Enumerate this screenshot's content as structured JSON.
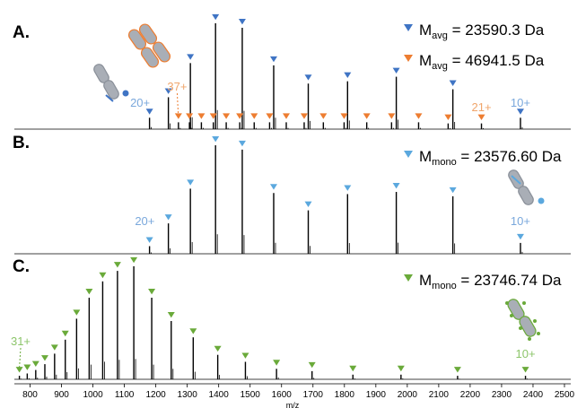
{
  "colors": {
    "blue": "#3f74c4",
    "lightblue": "#5ba8de",
    "orange": "#ed7d31",
    "green": "#6aaa3a",
    "peak": "#000000",
    "label_blue": "#7aa8dc",
    "label_orange": "#f0a56b",
    "label_green": "#8cc56a",
    "cartoon_gray": "#a9aeb6"
  },
  "chart_data": [
    {
      "type": "line",
      "panel": "A.",
      "legend_position": "top-right",
      "legend": [
        {
          "marker": "blue",
          "text": "M",
          "sub": "avg",
          "value": " = 23590.3 Da"
        },
        {
          "marker": "orange",
          "text": "M",
          "sub": "avg",
          "value": " = 46941.5 Da"
        }
      ],
      "series": [
        {
          "marker": "blue",
          "peaks": [
            {
              "mz": 1180,
              "rel": 0.1
            },
            {
              "mz": 1240,
              "rel": 0.28
            },
            {
              "mz": 1310,
              "rel": 0.58
            },
            {
              "mz": 1390,
              "rel": 0.93
            },
            {
              "mz": 1475,
              "rel": 0.89
            },
            {
              "mz": 1575,
              "rel": 0.56
            },
            {
              "mz": 1685,
              "rel": 0.4
            },
            {
              "mz": 1810,
              "rel": 0.42
            },
            {
              "mz": 1965,
              "rel": 0.46
            },
            {
              "mz": 2145,
              "rel": 0.35
            },
            {
              "mz": 2360,
              "rel": 0.1
            }
          ]
        },
        {
          "marker": "orange",
          "peaks": [
            {
              "mz": 1272,
              "rel": 0.06
            },
            {
              "mz": 1307,
              "rel": 0.06
            },
            {
              "mz": 1345,
              "rel": 0.06
            },
            {
              "mz": 1383,
              "rel": 0.06
            },
            {
              "mz": 1424,
              "rel": 0.06
            },
            {
              "mz": 1467,
              "rel": 0.06
            },
            {
              "mz": 1513,
              "rel": 0.06
            },
            {
              "mz": 1562,
              "rel": 0.06
            },
            {
              "mz": 1615,
              "rel": 0.06
            },
            {
              "mz": 1672,
              "rel": 0.06
            },
            {
              "mz": 1733,
              "rel": 0.06
            },
            {
              "mz": 1799,
              "rel": 0.06
            },
            {
              "mz": 1871,
              "rel": 0.06
            },
            {
              "mz": 1950,
              "rel": 0.06
            },
            {
              "mz": 2036,
              "rel": 0.06
            },
            {
              "mz": 2130,
              "rel": 0.05
            },
            {
              "mz": 2236,
              "rel": 0.05
            }
          ]
        }
      ],
      "annotations": [
        {
          "text": "20+",
          "mz": 1150,
          "color": "label_blue"
        },
        {
          "text": "37+",
          "mz": 1268,
          "color": "label_orange"
        },
        {
          "text": "21+",
          "mz": 2236,
          "color": "label_orange"
        },
        {
          "text": "10+",
          "mz": 2360,
          "color": "label_blue"
        }
      ]
    },
    {
      "type": "line",
      "panel": "B.",
      "legend_position": "top-right",
      "legend": [
        {
          "marker": "lightblue",
          "text": "M",
          "sub": "mono",
          "value": " = 23576.60 Da"
        }
      ],
      "series": [
        {
          "marker": "lightblue",
          "peaks": [
            {
              "mz": 1180,
              "rel": 0.07
            },
            {
              "mz": 1240,
              "rel": 0.28
            },
            {
              "mz": 1310,
              "rel": 0.6
            },
            {
              "mz": 1390,
              "rel": 1.0
            },
            {
              "mz": 1475,
              "rel": 0.96
            },
            {
              "mz": 1575,
              "rel": 0.56
            },
            {
              "mz": 1685,
              "rel": 0.4
            },
            {
              "mz": 1810,
              "rel": 0.55
            },
            {
              "mz": 1965,
              "rel": 0.57
            },
            {
              "mz": 2145,
              "rel": 0.53
            },
            {
              "mz": 2360,
              "rel": 0.1
            }
          ]
        }
      ],
      "annotations": [
        {
          "text": "20+",
          "mz": 1165,
          "color": "label_blue"
        },
        {
          "text": "10+",
          "mz": 2360,
          "color": "label_blue"
        }
      ]
    },
    {
      "type": "line",
      "panel": "C.",
      "legend_position": "top-right",
      "legend": [
        {
          "marker": "green",
          "text": "M",
          "sub": "mono",
          "value": " = 23746.74 Da"
        }
      ],
      "series": [
        {
          "marker": "green",
          "peaks": [
            {
              "mz": 766,
              "rel": 0.03
            },
            {
              "mz": 791,
              "rel": 0.05
            },
            {
              "mz": 818,
              "rel": 0.08
            },
            {
              "mz": 847,
              "rel": 0.13
            },
            {
              "mz": 878,
              "rel": 0.22
            },
            {
              "mz": 912,
              "rel": 0.34
            },
            {
              "mz": 948,
              "rel": 0.52
            },
            {
              "mz": 988,
              "rel": 0.7
            },
            {
              "mz": 1031,
              "rel": 0.84
            },
            {
              "mz": 1078,
              "rel": 0.93
            },
            {
              "mz": 1130,
              "rel": 0.97
            },
            {
              "mz": 1187,
              "rel": 0.7
            },
            {
              "mz": 1249,
              "rel": 0.5
            },
            {
              "mz": 1319,
              "rel": 0.36
            },
            {
              "mz": 1397,
              "rel": 0.21
            },
            {
              "mz": 1485,
              "rel": 0.15
            },
            {
              "mz": 1584,
              "rel": 0.09
            },
            {
              "mz": 1697,
              "rel": 0.07
            },
            {
              "mz": 1827,
              "rel": 0.04
            },
            {
              "mz": 1980,
              "rel": 0.04
            },
            {
              "mz": 2160,
              "rel": 0.03
            },
            {
              "mz": 2376,
              "rel": 0.03
            }
          ]
        }
      ],
      "annotations": [
        {
          "text": "31+",
          "mz": 770,
          "color": "label_green"
        },
        {
          "text": "10+",
          "mz": 2376,
          "color": "label_green"
        }
      ]
    }
  ],
  "x_axis": {
    "label": "m/z",
    "range": [
      750,
      2520
    ],
    "ticks": [
      800,
      900,
      1000,
      1100,
      1200,
      1300,
      1400,
      1500,
      1600,
      1700,
      1800,
      1900,
      2000,
      2100,
      2200,
      2300,
      2400,
      2500
    ],
    "tick_labels": [
      "800",
      "900",
      "1000",
      "1100",
      "1200",
      "1300",
      "1400",
      "1500",
      "1600",
      "1700",
      "1800",
      "1900",
      "2000",
      "2100",
      "2200",
      "2300",
      "2400",
      "2500"
    ]
  }
}
